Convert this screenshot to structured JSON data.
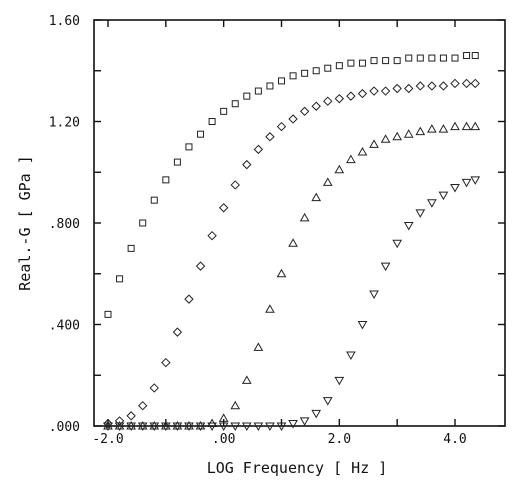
{
  "chart_data": {
    "type": "scatter",
    "title": "",
    "xlabel": "LOG Frequency [ Hz ]",
    "ylabel": "Real.-G [ GPa ]",
    "xlim": [
      -2.0,
      4.4
    ],
    "ylim": [
      0.0,
      1.6
    ],
    "x_tick_labels": [
      {
        "value": -2.0,
        "label": "-2.0"
      },
      {
        "value": 0.0,
        "label": ".00"
      },
      {
        "value": 2.0,
        "label": "2.0"
      },
      {
        "value": 4.0,
        "label": "4.0"
      }
    ],
    "y_tick_labels": [
      {
        "value": 0.0,
        "label": ".000"
      },
      {
        "value": 0.4,
        "label": ".400"
      },
      {
        "value": 0.8,
        "label": ".800"
      },
      {
        "value": 1.2,
        "label": "1.20"
      },
      {
        "value": 1.6,
        "label": "1.60"
      }
    ],
    "x_ticks_minor": [
      -2.0,
      -1.0,
      0.0,
      1.0,
      2.0,
      3.0,
      4.0
    ],
    "y_ticks_minor": [
      0.0,
      0.2,
      0.4,
      0.6,
      0.8,
      1.0,
      1.2,
      1.4,
      1.6
    ],
    "grid": false,
    "legend": "none",
    "series": [
      {
        "marker": "square",
        "x": [
          -2.0,
          -1.8,
          -1.6,
          -1.4,
          -1.2,
          -1.0,
          -0.8,
          -0.6,
          -0.4,
          -0.2,
          0.0,
          0.2,
          0.4,
          0.6,
          0.8,
          1.0,
          1.2,
          1.4,
          1.6,
          1.8,
          2.0,
          2.2,
          2.4,
          2.6,
          2.8,
          3.0,
          3.2,
          3.4,
          3.6,
          3.8,
          4.0,
          4.2,
          4.35
        ],
        "y": [
          0.44,
          0.58,
          0.7,
          0.8,
          0.89,
          0.97,
          1.04,
          1.1,
          1.15,
          1.2,
          1.24,
          1.27,
          1.3,
          1.32,
          1.34,
          1.36,
          1.38,
          1.39,
          1.4,
          1.41,
          1.42,
          1.43,
          1.43,
          1.44,
          1.44,
          1.44,
          1.45,
          1.45,
          1.45,
          1.45,
          1.45,
          1.46,
          1.46
        ]
      },
      {
        "marker": "diamond",
        "x": [
          -2.0,
          -1.8,
          -1.6,
          -1.4,
          -1.2,
          -1.0,
          -0.8,
          -0.6,
          -0.4,
          -0.2,
          0.0,
          0.2,
          0.4,
          0.6,
          0.8,
          1.0,
          1.2,
          1.4,
          1.6,
          1.8,
          2.0,
          2.2,
          2.4,
          2.6,
          2.8,
          3.0,
          3.2,
          3.4,
          3.6,
          3.8,
          4.0,
          4.2,
          4.35
        ],
        "y": [
          0.01,
          0.02,
          0.04,
          0.08,
          0.15,
          0.25,
          0.37,
          0.5,
          0.63,
          0.75,
          0.86,
          0.95,
          1.03,
          1.09,
          1.14,
          1.18,
          1.21,
          1.24,
          1.26,
          1.28,
          1.29,
          1.3,
          1.31,
          1.32,
          1.32,
          1.33,
          1.33,
          1.34,
          1.34,
          1.34,
          1.35,
          1.35,
          1.35
        ]
      },
      {
        "marker": "triangle-up",
        "x": [
          -2.0,
          -1.8,
          -1.6,
          -1.4,
          -1.2,
          -1.0,
          -0.8,
          -0.6,
          -0.4,
          -0.2,
          0.0,
          0.2,
          0.4,
          0.6,
          0.8,
          1.0,
          1.2,
          1.4,
          1.6,
          1.8,
          2.0,
          2.2,
          2.4,
          2.6,
          2.8,
          3.0,
          3.2,
          3.4,
          3.6,
          3.8,
          4.0,
          4.2,
          4.35
        ],
        "y": [
          0.0,
          0.0,
          0.0,
          0.0,
          0.0,
          0.0,
          0.0,
          0.0,
          0.0,
          0.01,
          0.03,
          0.08,
          0.18,
          0.31,
          0.46,
          0.6,
          0.72,
          0.82,
          0.9,
          0.96,
          1.01,
          1.05,
          1.08,
          1.11,
          1.13,
          1.14,
          1.15,
          1.16,
          1.17,
          1.17,
          1.18,
          1.18,
          1.18
        ]
      },
      {
        "marker": "triangle-down",
        "x": [
          -2.0,
          -1.8,
          -1.6,
          -1.4,
          -1.2,
          -1.0,
          -0.8,
          -0.6,
          -0.4,
          -0.2,
          0.0,
          0.2,
          0.4,
          0.6,
          0.8,
          1.0,
          1.2,
          1.4,
          1.6,
          1.8,
          2.0,
          2.2,
          2.4,
          2.6,
          2.8,
          3.0,
          3.2,
          3.4,
          3.6,
          3.8,
          4.0,
          4.2,
          4.35
        ],
        "y": [
          0.0,
          0.0,
          0.0,
          0.0,
          0.0,
          0.0,
          0.0,
          0.0,
          0.0,
          0.0,
          0.0,
          0.0,
          0.0,
          0.0,
          0.0,
          0.0,
          0.01,
          0.02,
          0.05,
          0.1,
          0.18,
          0.28,
          0.4,
          0.52,
          0.63,
          0.72,
          0.79,
          0.84,
          0.88,
          0.91,
          0.94,
          0.96,
          0.97
        ]
      }
    ]
  }
}
